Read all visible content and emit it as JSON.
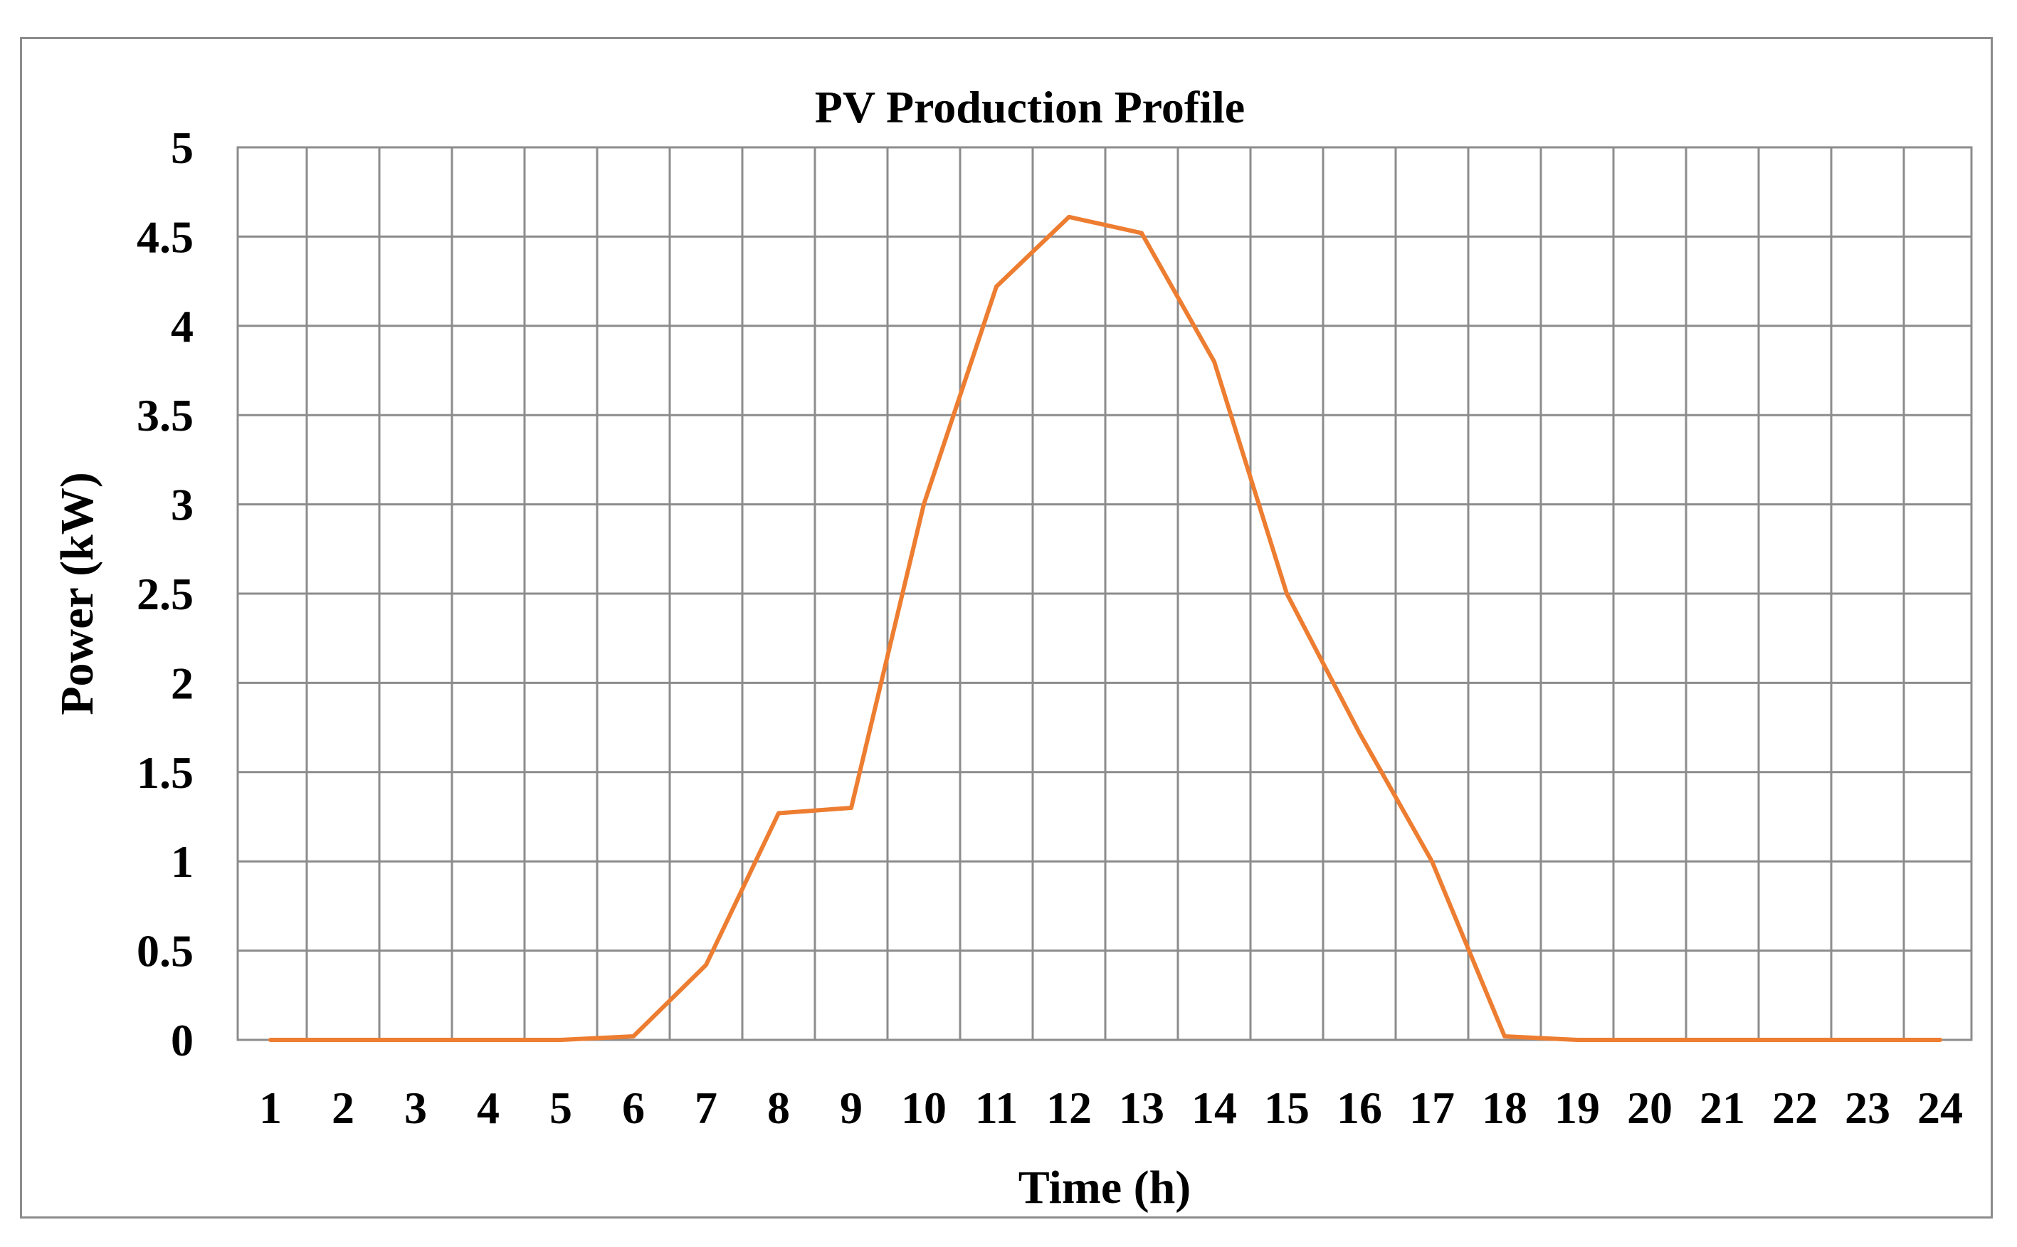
{
  "chart_data": {
    "type": "line",
    "title": "PV Production Profile",
    "xlabel": "Time (h)",
    "ylabel": "Power (kW)",
    "categories": [
      "1",
      "2",
      "3",
      "4",
      "5",
      "6",
      "7",
      "8",
      "9",
      "10",
      "11",
      "12",
      "13",
      "14",
      "15",
      "16",
      "17",
      "18",
      "19",
      "20",
      "21",
      "22",
      "23",
      "24"
    ],
    "ylim": [
      0,
      5
    ],
    "yticks": [
      "0",
      "0.5",
      "1",
      "1.5",
      "2",
      "2.5",
      "3",
      "3.5",
      "4",
      "4.5",
      "5"
    ],
    "grid": true,
    "legend": "none",
    "series": [
      {
        "color": "#ED7D31",
        "values": [
          0,
          0,
          0,
          0,
          0,
          0.02,
          0.42,
          1.27,
          1.3,
          3.0,
          4.22,
          4.61,
          4.52,
          3.8,
          2.5,
          1.72,
          1.0,
          0.02,
          0,
          0,
          0,
          0,
          0,
          0
        ]
      }
    ]
  }
}
